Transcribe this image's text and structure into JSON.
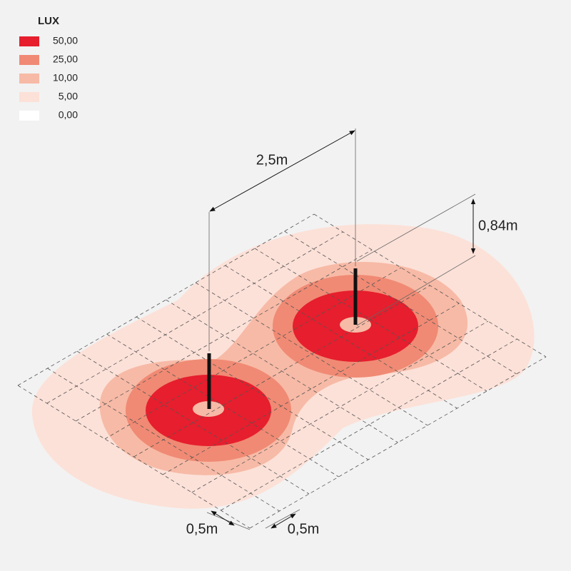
{
  "legend": {
    "title": "LUX",
    "items": [
      {
        "label": "50,00",
        "color": "#e61e2d"
      },
      {
        "label": "25,00",
        "color": "#f08a74"
      },
      {
        "label": "10,00",
        "color": "#f7baa6"
      },
      {
        "label": "5,00",
        "color": "#fce1d8"
      },
      {
        "label": "0,00",
        "color": "#ffffff"
      }
    ]
  },
  "dimensions": {
    "spacing": "2,5m",
    "height": "0,84m",
    "grid_x": "0,5m",
    "grid_y": "0,5m"
  }
}
